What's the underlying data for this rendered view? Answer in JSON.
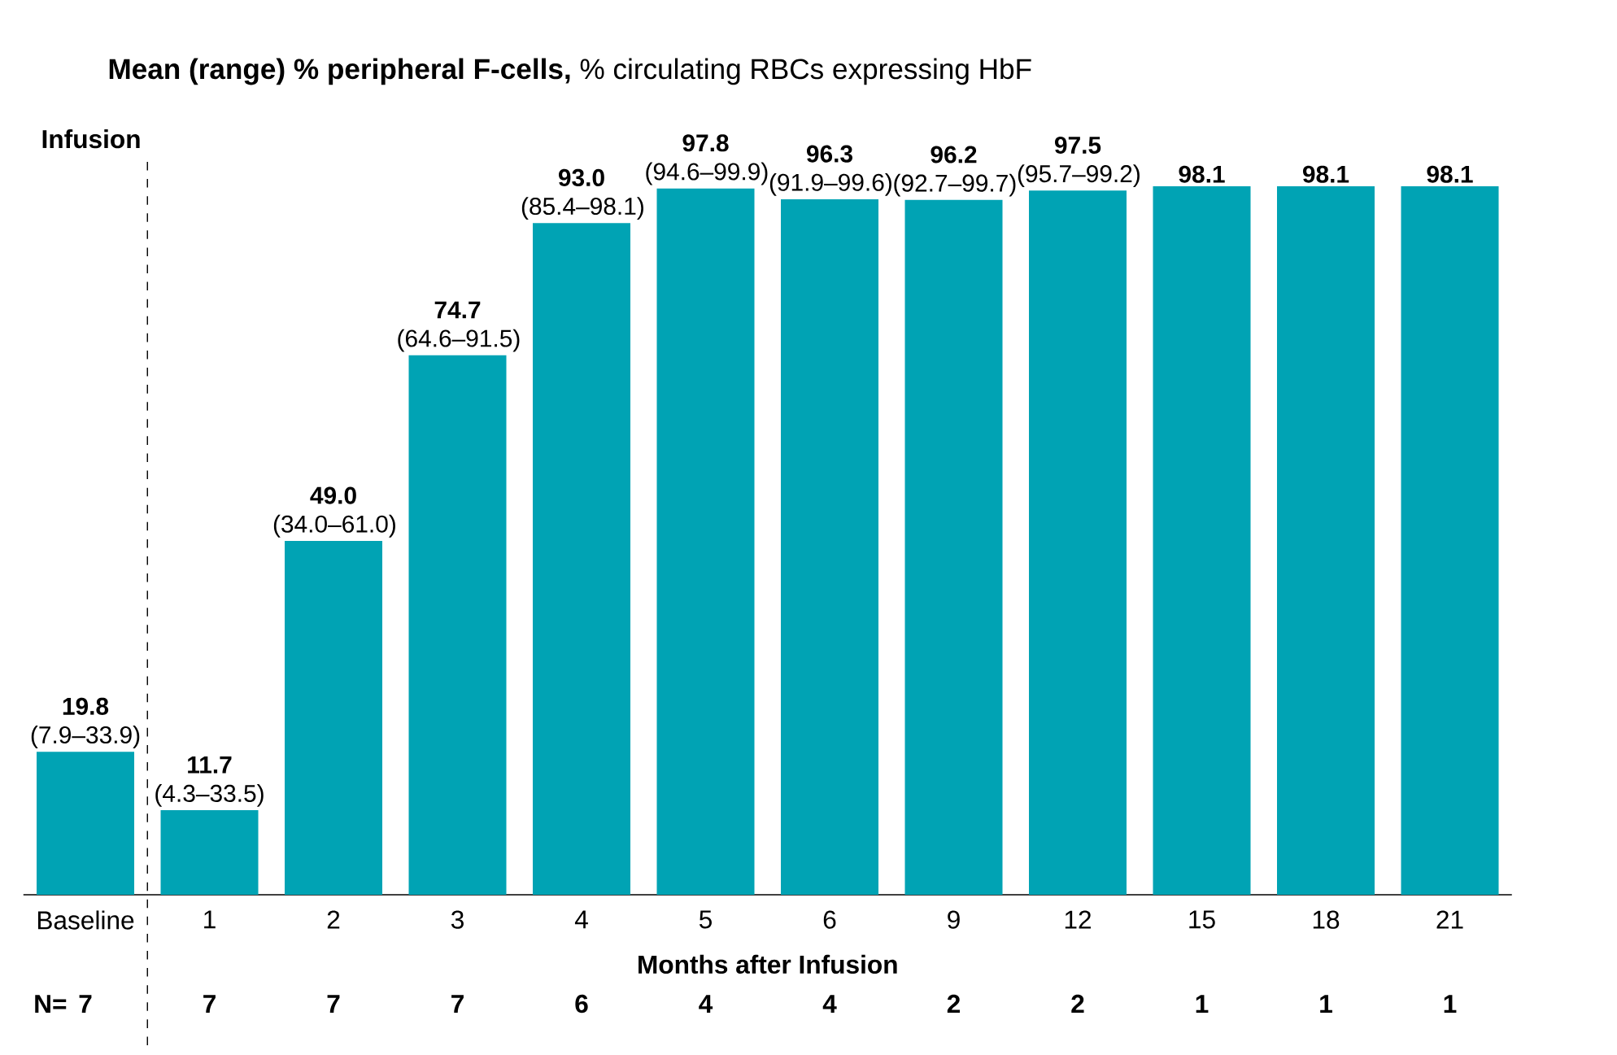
{
  "chart_data": {
    "type": "bar",
    "title": "**Mean (range) % peripheral F-cells,** % circulating RBCs expressing HbF",
    "xlabel": "Months after Infusion",
    "categories": [
      "Baseline",
      "1",
      "2",
      "3",
      "4",
      "5",
      "6",
      "9",
      "12",
      "15",
      "18",
      "21"
    ],
    "values": [
      19.8,
      11.7,
      49.0,
      74.7,
      93.0,
      97.8,
      96.3,
      96.2,
      97.5,
      98.1,
      98.1,
      98.1
    ],
    "value_labels": [
      "**19.8** (7.9–33.9)",
      "**11.7** (4.3–33.5)",
      "**49.0** (34.0–61.0)",
      "**74.7** (64.6–91.5)",
      "**93.0** (85.4–98.1)",
      "**97.8** (94.6–99.9)",
      "**96.3** (91.9–99.6)",
      "**96.2** (92.7–99.7)",
      "**97.5** (95.7–99.2)",
      "**98.1**",
      "**98.1**",
      "**98.1**"
    ],
    "color": "#00a3b4",
    "tick_labels": "x",
    "grid": false,
    "annotations": [
      "**Infusion**",
      "**N=**",
      "**7**",
      "**7**",
      "**7**",
      "**7**",
      "**6**",
      "**4**",
      "**4**",
      "**2**",
      "**2**",
      "**1**",
      "**1**",
      "**1**"
    ]
  }
}
